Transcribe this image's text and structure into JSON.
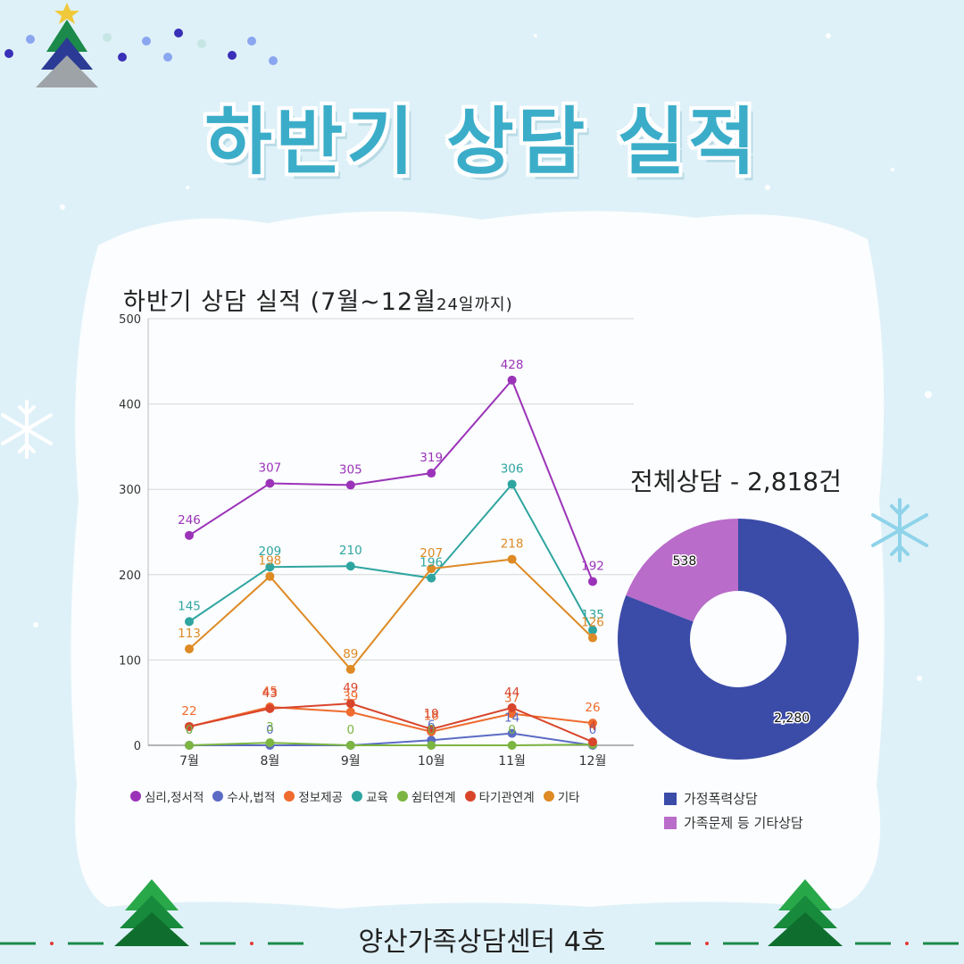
{
  "page": {
    "title": "하반기 상담 실적",
    "footer": "양산가족상담센터 4호"
  },
  "chart_data": [
    {
      "type": "line",
      "title": "하반기 상담 실적 (7월~12월",
      "title_small": "24일까지)",
      "categories": [
        "7월",
        "8월",
        "9월",
        "10월",
        "11월",
        "12월"
      ],
      "ylim": [
        0,
        500
      ],
      "yticks": [
        "0",
        "100",
        "200",
        "300",
        "400",
        "500"
      ],
      "grid": true,
      "legend": "bottom",
      "series": [
        {
          "name": "심리,정서적",
          "color": "#9b33b8",
          "values": [
            246,
            307,
            305,
            319,
            428,
            192
          ],
          "labels": [
            "246",
            "307",
            "305",
            "319",
            "428",
            "192"
          ]
        },
        {
          "name": "수사,법적",
          "color": "#5b6bc4",
          "values": [
            0,
            0,
            0,
            6,
            14,
            0
          ],
          "labels": [
            "0",
            "0",
            "",
            "6",
            "14",
            "0"
          ]
        },
        {
          "name": "정보제공",
          "color": "#ef6b2e",
          "values": [
            22,
            45,
            39,
            16,
            37,
            26
          ],
          "labels": [
            "22",
            "45",
            "39",
            "16",
            "37",
            "26"
          ]
        },
        {
          "name": "교육",
          "color": "#2fa5a0",
          "values": [
            145,
            209,
            210,
            196,
            306,
            135
          ],
          "labels": [
            "145",
            "209",
            "210",
            "196",
            "306",
            "135"
          ]
        },
        {
          "name": "쉼터연계",
          "color": "#7cb542",
          "values": [
            0,
            3,
            0,
            0,
            0,
            1
          ],
          "labels": [
            "0",
            "3",
            "0",
            "0",
            "0",
            ""
          ]
        },
        {
          "name": "타기관연계",
          "color": "#d9452b",
          "values": [
            22,
            43,
            49,
            19,
            44,
            4
          ],
          "labels": [
            "",
            "43",
            "49",
            "19",
            "44",
            "4"
          ]
        },
        {
          "name": "기타",
          "color": "#de8a25",
          "values": [
            113,
            198,
            89,
            207,
            218,
            126
          ],
          "labels": [
            "113",
            "198",
            "89",
            "207",
            "218",
            "126"
          ]
        }
      ]
    },
    {
      "type": "pie",
      "title": "전체상담 - 2,818건",
      "slices": [
        {
          "name": "가정폭력상담",
          "value": 2280,
          "label": "2,280",
          "color": "#3b4ba8"
        },
        {
          "name": "가족문제 등 기타상담",
          "value": 538,
          "label": "538",
          "color": "#b96cc9"
        }
      ],
      "legend": "bottom"
    }
  ]
}
